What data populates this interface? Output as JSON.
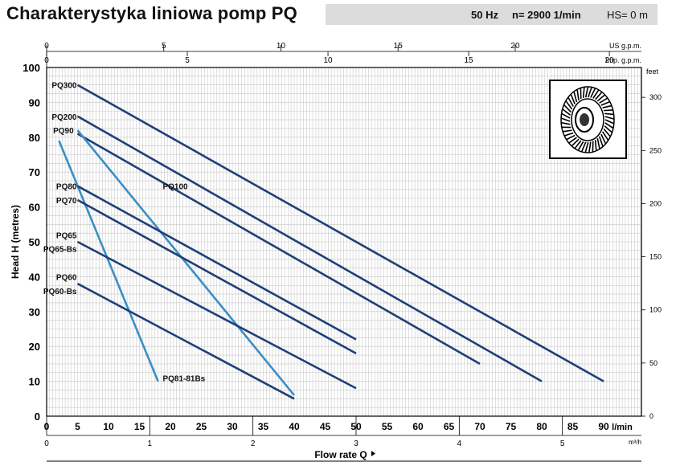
{
  "header": {
    "title": "Charakterystyka liniowa pomp PQ",
    "freq": "50 Hz",
    "speed": "n= 2900  1/min",
    "hs": "HS= 0 m"
  },
  "chart_data": {
    "type": "line",
    "title": "Charakterystyka liniowa pomp PQ",
    "xlabel": "Flow rate Q",
    "xunit": "l/min",
    "ylabel": "Head H (metres)",
    "xlim": [
      0,
      95
    ],
    "ylim": [
      0,
      100
    ],
    "x_ticks": [
      0,
      5,
      10,
      15,
      20,
      25,
      30,
      35,
      40,
      45,
      50,
      55,
      60,
      65,
      70,
      75,
      80,
      85,
      90
    ],
    "y_ticks": [
      0,
      10,
      20,
      30,
      40,
      50,
      60,
      70,
      80,
      90,
      100
    ],
    "grid": true,
    "secondary_axes": {
      "m3h": {
        "unit": "m³/h",
        "ticks": [
          0,
          1,
          2,
          3,
          4,
          5
        ],
        "per_lmin": 0.06
      },
      "us_gpm": {
        "unit": "US g.p.m.",
        "ticks": [
          0,
          5,
          10,
          15,
          20
        ],
        "per_lmin": 0.26417
      },
      "imp_gpm": {
        "unit": "Imp. g.p.m.",
        "ticks": [
          0,
          5,
          10,
          15,
          20
        ],
        "per_lmin": 0.21997
      },
      "feet": {
        "unit": "feet",
        "ticks": [
          0,
          50,
          100,
          150,
          200,
          250,
          300
        ],
        "per_m": 3.28084
      }
    },
    "series": [
      {
        "name": "PQ300",
        "color": "#1f3f78",
        "x": [
          5,
          90
        ],
        "y": [
          95,
          10
        ]
      },
      {
        "name": "PQ200",
        "color": "#1f3f78",
        "x": [
          5,
          80
        ],
        "y": [
          86,
          10
        ]
      },
      {
        "name": "PQ100",
        "color": "#1f3f78",
        "x": [
          5,
          70
        ],
        "y": [
          81,
          15
        ]
      },
      {
        "name": "PQ90",
        "color": "#3a8fc4",
        "x": [
          5,
          40
        ],
        "y": [
          82,
          6
        ]
      },
      {
        "name": "PQ81-81Bs",
        "color": "#3a8fc4",
        "x": [
          2,
          18
        ],
        "y": [
          79,
          10
        ]
      },
      {
        "name": "PQ80",
        "color": "#1f3f78",
        "x": [
          5,
          50
        ],
        "y": [
          66,
          22
        ]
      },
      {
        "name": "PQ70",
        "color": "#1f3f78",
        "x": [
          5,
          50
        ],
        "y": [
          62,
          18
        ]
      },
      {
        "name": "PQ65 / PQ65-Bs",
        "color": "#1f3f78",
        "x": [
          5,
          50
        ],
        "y": [
          50,
          8
        ]
      },
      {
        "name": "PQ60 / PQ60-Bs",
        "color": "#1f3f78",
        "x": [
          5,
          40
        ],
        "y": [
          38,
          5
        ]
      }
    ],
    "curve_labels": [
      {
        "text": "PQ300",
        "x": 5,
        "y": 95,
        "anchor": "end"
      },
      {
        "text": "PQ200",
        "x": 5,
        "y": 86,
        "anchor": "end"
      },
      {
        "text": "PQ90",
        "x": 4.5,
        "y": 82,
        "anchor": "end"
      },
      {
        "text": "PQ100",
        "x": 18.5,
        "y": 66,
        "anchor": "start"
      },
      {
        "text": "PQ80",
        "x": 5,
        "y": 66,
        "anchor": "end"
      },
      {
        "text": "PQ70",
        "x": 5,
        "y": 62,
        "anchor": "end"
      },
      {
        "text": "PQ65",
        "x": 5,
        "y": 52,
        "anchor": "end"
      },
      {
        "text": "PQ65-Bs",
        "x": 5,
        "y": 48,
        "anchor": "end"
      },
      {
        "text": "PQ60",
        "x": 5,
        "y": 40,
        "anchor": "end"
      },
      {
        "text": "PQ60-Bs",
        "x": 5,
        "y": 36,
        "anchor": "end"
      },
      {
        "text": "PQ81-81Bs",
        "x": 18.5,
        "y": 11,
        "anchor": "start"
      }
    ]
  }
}
